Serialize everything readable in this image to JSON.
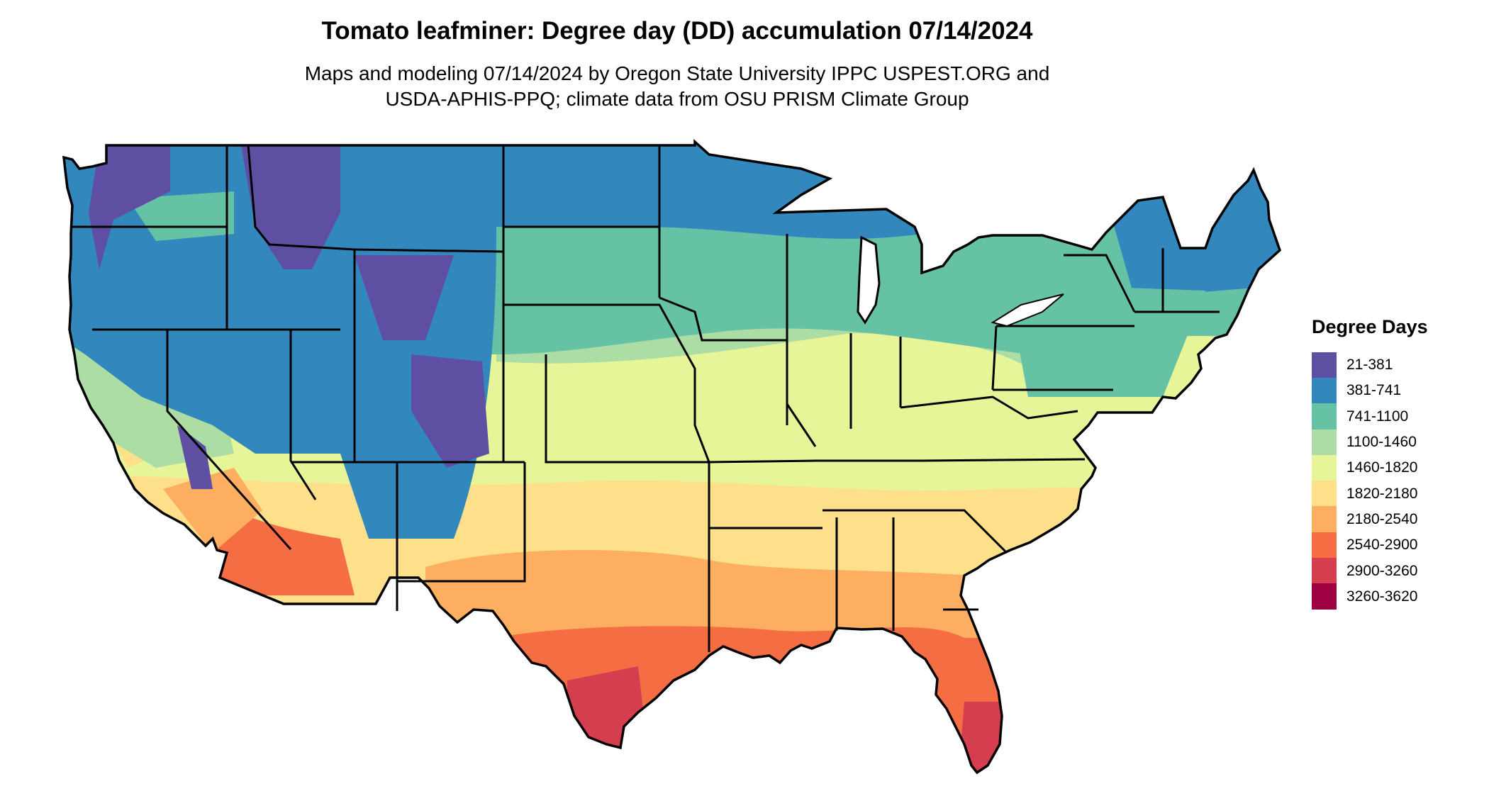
{
  "title": "Tomato leafminer: Degree day (DD) accumulation 07/14/2024",
  "subtitle_lines": [
    "Maps and modeling 07/14/2024 by Oregon State University IPPC USPEST.ORG and",
    "USDA-APHIS-PPQ; climate data from OSU PRISM Climate Group"
  ],
  "legend": {
    "title": "Degree Days",
    "items": [
      {
        "label": "21-381",
        "color": "#5e4fa2"
      },
      {
        "label": "381-741",
        "color": "#3288bd"
      },
      {
        "label": "741-1100",
        "color": "#66c2a5"
      },
      {
        "label": "1100-1460",
        "color": "#abdda4"
      },
      {
        "label": "1460-1820",
        "color": "#e6f598"
      },
      {
        "label": "1820-2180",
        "color": "#fee08b"
      },
      {
        "label": "2180-2540",
        "color": "#fdae61"
      },
      {
        "label": "2540-2900",
        "color": "#f46d43"
      },
      {
        "label": "2900-3260",
        "color": "#d53e4f"
      },
      {
        "label": "3260-3620",
        "color": "#9e0142"
      }
    ]
  }
}
